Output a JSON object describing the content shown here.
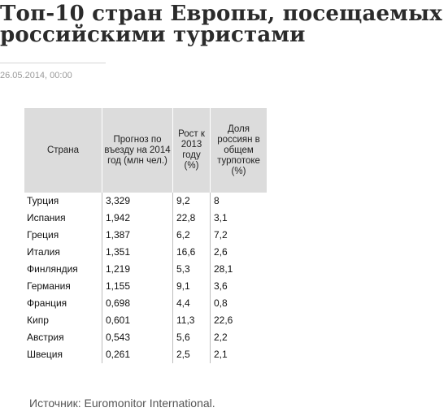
{
  "article": {
    "title": "Топ-10 стран Европы, посещаемых российскими туристами",
    "date": "26.05.2014, 00:00",
    "source": "Источник: Euromonitor International."
  },
  "table": {
    "headers": [
      "Страна",
      "Прогноз по въезду на 2014 год (млн чел.)",
      "Рост к 2013 году (%)",
      "Доля россиян в общем турпотоке (%)"
    ],
    "rows": [
      [
        "Турция",
        "3,329",
        "9,2",
        "8"
      ],
      [
        "Испания",
        "1,942",
        "22,8",
        "3,1"
      ],
      [
        "Греция",
        "1,387",
        "6,2",
        "7,2"
      ],
      [
        "Италия",
        "1,351",
        "16,6",
        "2,6"
      ],
      [
        "Финляндия",
        "1,219",
        "5,3",
        "28,1"
      ],
      [
        "Германия",
        "1,155",
        "9,1",
        "3,6"
      ],
      [
        "Франция",
        "0,698",
        "4,4",
        "0,8"
      ],
      [
        "Кипр",
        "0,601",
        "11,3",
        "22,6"
      ],
      [
        "Австрия",
        "0,543",
        "5,6",
        "2,2"
      ],
      [
        "Швеция",
        "0,261",
        "2,5",
        "2,1"
      ]
    ]
  }
}
